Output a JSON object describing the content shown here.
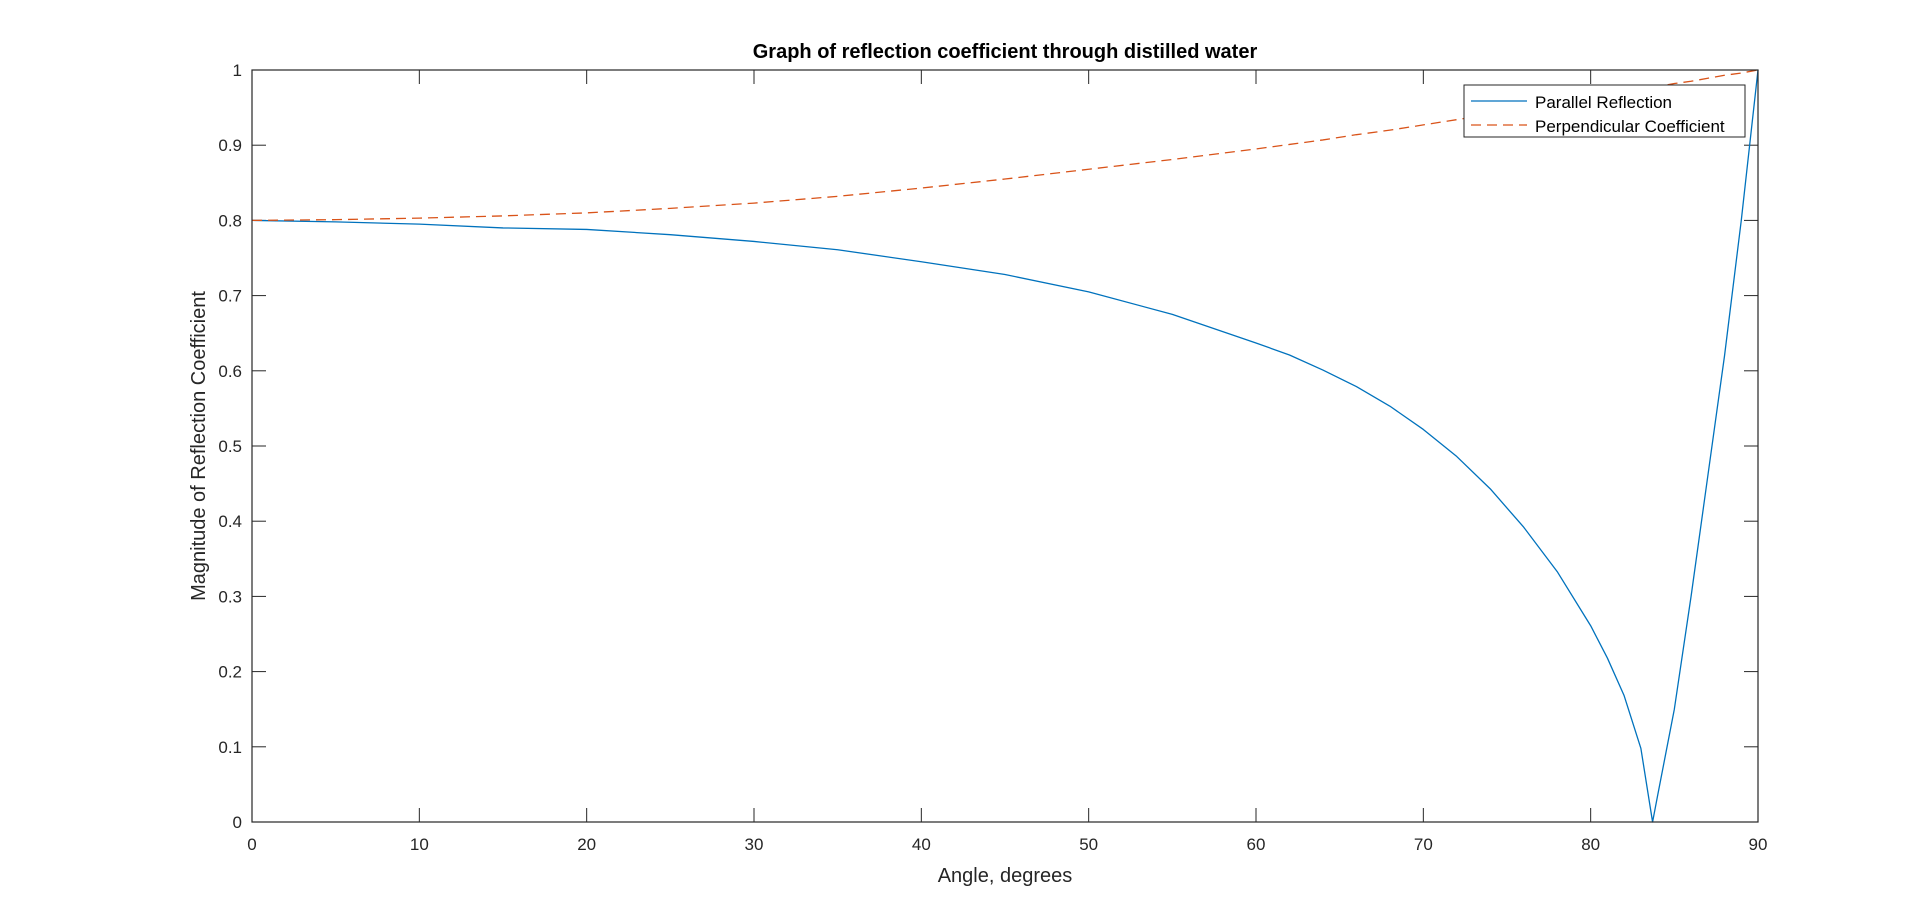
{
  "chart_data": {
    "type": "line",
    "title": "Graph of reflection coefficient through distilled water",
    "xlabel": "Angle, degrees",
    "ylabel": "Magnitude of Reflection Coefficient",
    "xlim": [
      0,
      90
    ],
    "ylim": [
      0,
      1
    ],
    "x_ticks": [
      0,
      10,
      20,
      30,
      40,
      50,
      60,
      70,
      80,
      90
    ],
    "y_ticks": [
      0,
      0.1,
      0.2,
      0.3,
      0.4,
      0.5,
      0.6,
      0.7,
      0.8,
      0.9,
      1
    ],
    "x_tick_labels": [
      "0",
      "10",
      "20",
      "30",
      "40",
      "50",
      "60",
      "70",
      "80",
      "90"
    ],
    "y_tick_labels": [
      "0",
      "0.1",
      "0.2",
      "0.3",
      "0.4",
      "0.5",
      "0.6",
      "0.7",
      "0.8",
      "0.9",
      "1"
    ],
    "grid": false,
    "legend_position": "top-right",
    "x": [
      0,
      5,
      10,
      15,
      20,
      25,
      30,
      35,
      40,
      45,
      50,
      55,
      60,
      62,
      64,
      66,
      68,
      70,
      72,
      74,
      76,
      78,
      80,
      81,
      82,
      83,
      83.7,
      84,
      85,
      86,
      87,
      88,
      89,
      90
    ],
    "series": [
      {
        "name": "Parallel Reflection",
        "color": "#0072BD",
        "line_style": "solid",
        "values": [
          0.8,
          0.798,
          0.795,
          0.79,
          0.788,
          0.781,
          0.772,
          0.761,
          0.745,
          0.728,
          0.705,
          0.675,
          0.637,
          0.621,
          0.601,
          0.579,
          0.553,
          0.522,
          0.486,
          0.443,
          0.392,
          0.333,
          0.261,
          0.218,
          0.168,
          0.098,
          0.0,
          0.035,
          0.15,
          0.3,
          0.46,
          0.62,
          0.8,
          1.0
        ]
      },
      {
        "name": "Perpendicular Coefficient",
        "color": "#D95319",
        "line_style": "dashed",
        "values": [
          0.8,
          0.801,
          0.803,
          0.806,
          0.81,
          0.816,
          0.823,
          0.832,
          0.843,
          0.855,
          0.868,
          0.881,
          0.895,
          0.901,
          0.907,
          0.914,
          0.92,
          0.927,
          0.934,
          0.941,
          0.948,
          0.955,
          0.963,
          0.967,
          0.97,
          0.974,
          0.977,
          0.978,
          0.982,
          0.985,
          0.989,
          0.993,
          0.996,
          1.0
        ]
      }
    ]
  }
}
